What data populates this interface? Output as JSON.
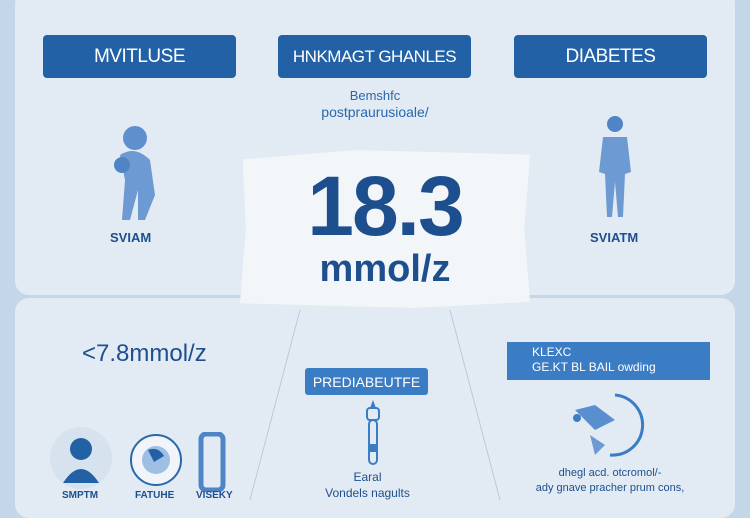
{
  "header_buttons": [
    "MVITLUSE",
    "HNKMAGT GHANLES",
    "DIABETES"
  ],
  "subtitle": {
    "line1": "Bemshfc",
    "line2": "postpraurusioale/"
  },
  "reading": {
    "value": "18.3",
    "unit": "mmol/z"
  },
  "left_figure_label": "SVIAM",
  "right_figure_label": "SVIATM",
  "target": "<7.8mmol/z",
  "prediabetes_label": "PREDIABEUTFE",
  "prediabetes_caption": {
    "line1": "Earal",
    "line2": "Vondels nagults"
  },
  "right_box": {
    "line1": "KLEXC",
    "line2": "GE.KT BL BAIL owding"
  },
  "right_caption": {
    "line1": "dhegl acd. otcromol/-",
    "line2": "ady gnave pracher prum cons,"
  },
  "icon_labels": [
    "SMPTM",
    "FATUHE",
    "VISEKY"
  ],
  "colors": {
    "accent": "#2361a6",
    "panel": "#e2ebf3",
    "background": "#c4d7e8"
  }
}
